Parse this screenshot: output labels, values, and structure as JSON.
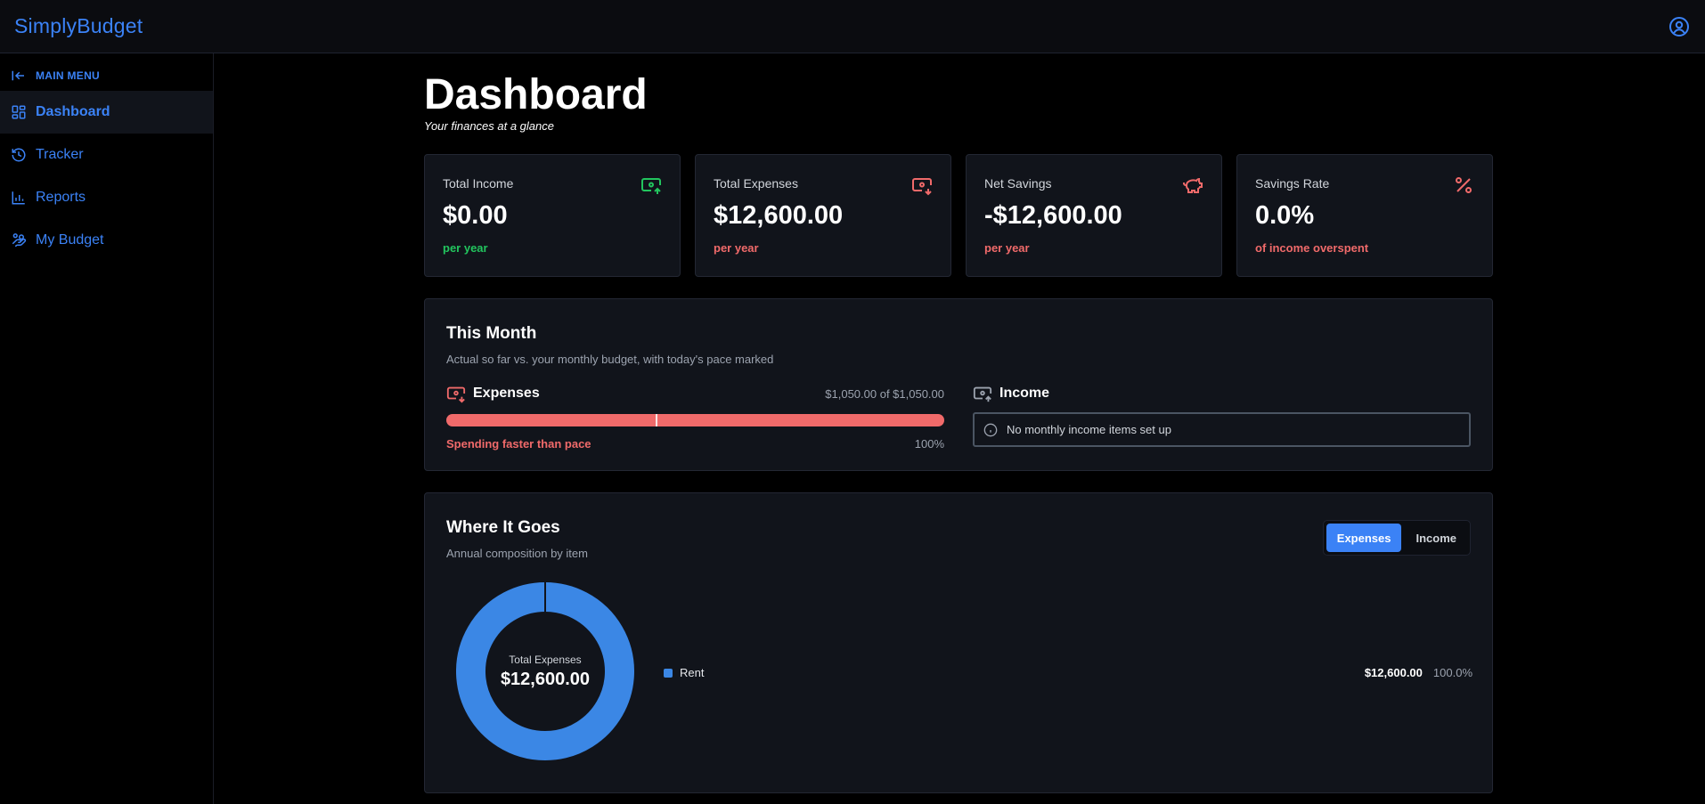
{
  "app": {
    "brand": "SimplyBudget"
  },
  "colors": {
    "accent": "#3b82f6",
    "positive": "#22c55e",
    "negative": "#f06a6a"
  },
  "sidebar": {
    "header": "MAIN MENU",
    "items": [
      {
        "label": "Dashboard",
        "icon": "dashboard-icon",
        "active": true
      },
      {
        "label": "Tracker",
        "icon": "history-icon"
      },
      {
        "label": "Reports",
        "icon": "bar-chart-icon"
      },
      {
        "label": "My Budget",
        "icon": "hand-coins-icon"
      }
    ]
  },
  "page": {
    "title": "Dashboard",
    "subtitle": "Your finances at a glance"
  },
  "cards": [
    {
      "label": "Total Income",
      "value": "$0.00",
      "note": "per year",
      "icon": "banknote-arrow-up-icon"
    },
    {
      "label": "Total Expenses",
      "value": "$12,600.00",
      "note": "per year",
      "icon": "banknote-arrow-down-icon"
    },
    {
      "label": "Net Savings",
      "value": "-$12,600.00",
      "note": "per year",
      "icon": "piggy-bank-icon"
    },
    {
      "label": "Savings Rate",
      "value": "0.0%",
      "note": "of income overspent",
      "icon": "percent-icon"
    }
  ],
  "this_month": {
    "title": "This Month",
    "subtitle": "Actual so far vs. your monthly budget, with today's pace marked",
    "expenses": {
      "label": "Expenses",
      "amount": "$1,050.00 of $1,050.00",
      "progress": 1.0,
      "pace": 0.42,
      "status": "Spending faster than pace",
      "percent": "100%"
    },
    "income": {
      "label": "Income",
      "empty_message": "No monthly income items set up"
    }
  },
  "where_it_goes": {
    "title": "Where It Goes",
    "subtitle": "Annual composition by item",
    "toggle": {
      "expenses": "Expenses",
      "income": "Income",
      "selected": "Expenses"
    },
    "center_label": "Total Expenses",
    "center_value": "$12,600.00",
    "items": [
      {
        "name": "Rent",
        "amount": "$12,600.00",
        "percent": "100.0%",
        "color": "#3b87e5"
      }
    ]
  },
  "chart_data": {
    "type": "pie",
    "categories": [
      "Rent"
    ],
    "values": [
      12600
    ],
    "title": "Where It Goes"
  }
}
